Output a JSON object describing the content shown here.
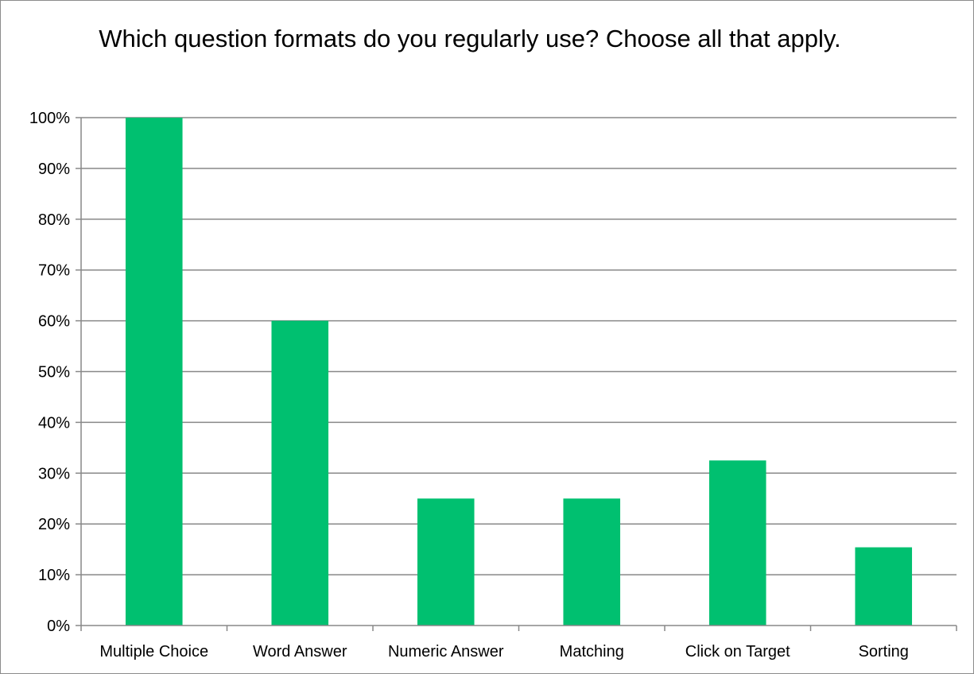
{
  "chart_data": {
    "type": "bar",
    "title": "Which question formats do you regularly use? Choose all that apply.",
    "categories": [
      "Multiple Choice",
      "Word Answer",
      "Numeric Answer",
      "Matching",
      "Click on Target",
      "Sorting"
    ],
    "values": [
      100,
      60,
      25,
      25,
      32.5,
      15.4
    ],
    "yticks": [
      "0%",
      "10%",
      "20%",
      "30%",
      "40%",
      "50%",
      "60%",
      "70%",
      "80%",
      "90%",
      "100%"
    ],
    "ylim": [
      0,
      100
    ],
    "grid": true,
    "legend": "none",
    "colors": {
      "bar": "#00c070",
      "grid": "#888888",
      "axis": "#888888"
    }
  }
}
